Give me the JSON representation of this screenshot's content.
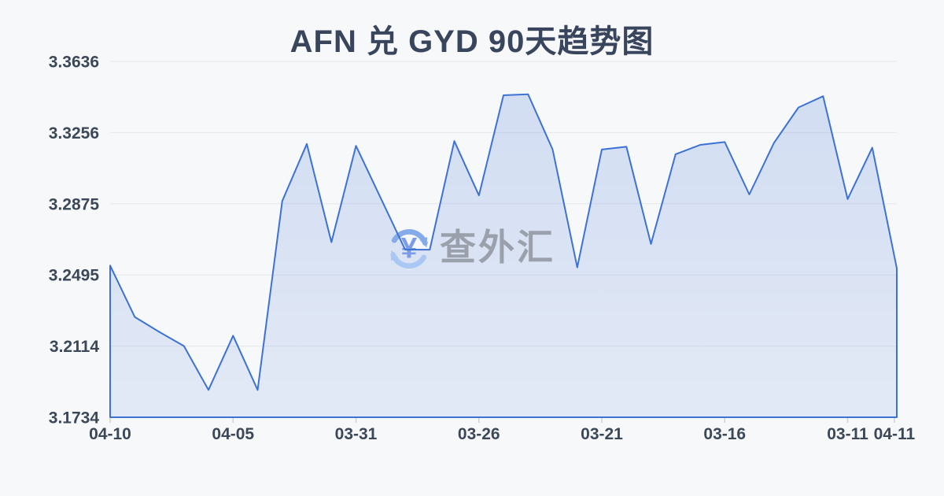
{
  "title": "AFN 兑 GYD 90天趋势图",
  "watermark": {
    "text": "查外汇",
    "icon": "yen-exchange-icon"
  },
  "colors": {
    "background": "#f7f8fa",
    "title_text": "#39455c",
    "axis_label": "#3c4858",
    "grid_line": "#e6e8ed",
    "tick_mark": "#ccd1d9",
    "line": "#3d72d4",
    "fill_top": "rgba(61,114,212,0.20)",
    "fill_bottom": "rgba(61,114,212,0.11)",
    "watermark_text": "#9aa1ac",
    "watermark_arrow_dark": "#85abe9",
    "watermark_arrow_light": "#a9c7f2",
    "watermark_yen": "#7b9de9"
  },
  "chart_data": {
    "type": "area",
    "title": "AFN 兑 GYD 90天趋势图",
    "series_name": "AFN/GYD",
    "xlabel": "",
    "ylabel": "",
    "ylim": [
      3.1734,
      3.3636
    ],
    "y_ticks": [
      "3.3636",
      "3.3256",
      "3.2875",
      "3.2495",
      "3.2114",
      "3.1734"
    ],
    "x_ticks": [
      {
        "label": "04-10",
        "day": 0
      },
      {
        "label": "04-05",
        "day": 5
      },
      {
        "label": "03-31",
        "day": 10
      },
      {
        "label": "03-26",
        "day": 15
      },
      {
        "label": "03-21",
        "day": 20
      },
      {
        "label": "03-16",
        "day": 25
      },
      {
        "label": "03-11",
        "day": 30
      },
      {
        "label": "04-11",
        "day": 31.9
      }
    ],
    "x_day_span": 32,
    "grid": true,
    "legend": false,
    "points": [
      [
        0,
        3.2545
      ],
      [
        1,
        3.227
      ],
      [
        2,
        3.219
      ],
      [
        3,
        3.2115
      ],
      [
        4,
        3.188
      ],
      [
        5,
        3.217
      ],
      [
        6,
        3.188
      ],
      [
        7,
        3.289
      ],
      [
        8,
        3.3195
      ],
      [
        9,
        3.267
      ],
      [
        10,
        3.3185
      ],
      [
        12,
        3.263
      ],
      [
        13,
        3.263
      ],
      [
        14,
        3.321
      ],
      [
        15,
        3.292
      ],
      [
        16,
        3.3455
      ],
      [
        17,
        3.346
      ],
      [
        18,
        3.3165
      ],
      [
        19,
        3.2535
      ],
      [
        20,
        3.3165
      ],
      [
        21,
        3.318
      ],
      [
        22,
        3.266
      ],
      [
        23,
        3.314
      ],
      [
        24,
        3.319
      ],
      [
        25,
        3.3205
      ],
      [
        26,
        3.2925
      ],
      [
        27,
        3.32
      ],
      [
        28,
        3.339
      ],
      [
        29,
        3.345
      ],
      [
        30,
        3.29
      ],
      [
        31,
        3.3175
      ],
      [
        32,
        3.253
      ]
    ]
  }
}
